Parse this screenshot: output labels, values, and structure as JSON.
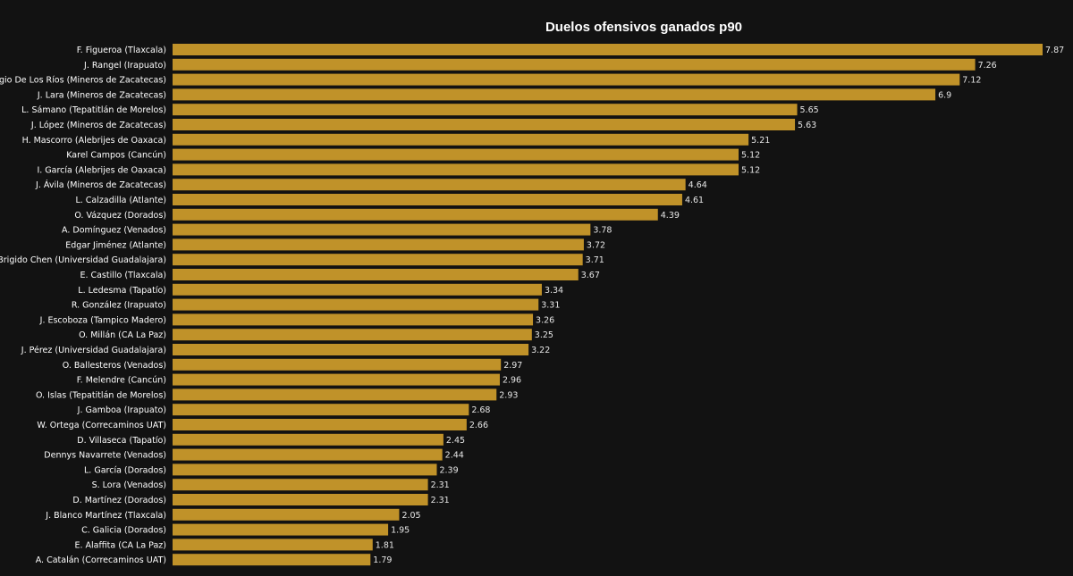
{
  "chart_data": {
    "type": "bar",
    "orientation": "horizontal",
    "title": "Duelos ofensivos ganados p90",
    "bar_color": "#c09229",
    "background": "#121212",
    "categories": [
      "F. Figueroa (Tlaxcala)",
      "J. Rangel (Irapuato)",
      "Sergio De Los Ríos (Mineros de Zacatecas)",
      "J. Lara (Mineros de Zacatecas)",
      "L. Sámano (Tepatitlán de Morelos)",
      "J. López (Mineros de Zacatecas)",
      "H. Mascorro (Alebrijes de Oaxaca)",
      "Karel Campos (Cancún)",
      "I. García (Alebrijes de Oaxaca)",
      "J. Ávila (Mineros de Zacatecas)",
      "L. Calzadilla (Atlante)",
      "O. Vázquez (Dorados)",
      "A. Domínguez (Venados)",
      "Edgar Jiménez (Atlante)",
      "J. Brigido Chen (Universidad Guadalajara)",
      "E. Castillo (Tlaxcala)",
      "L. Ledesma (Tapatío)",
      "R. González (Irapuato)",
      "J. Escoboza (Tampico Madero)",
      "O. Millán (CA La Paz)",
      "J. Pérez (Universidad Guadalajara)",
      "O. Ballesteros (Venados)",
      "F. Melendre (Cancún)",
      "O. Islas (Tepatitlán de Morelos)",
      "J. Gamboa (Irapuato)",
      "W. Ortega (Correcaminos UAT)",
      "D. Villaseca (Tapatío)",
      "Dennys Navarrete (Venados)",
      "L. García (Dorados)",
      "S. Lora (Venados)",
      "D. Martínez (Dorados)",
      "J. Blanco Martínez (Tlaxcala)",
      "C. Galicia (Dorados)",
      "E. Alaffita (CA La Paz)",
      "A. Catalán (Correcaminos UAT)"
    ],
    "values": [
      7.87,
      7.26,
      7.12,
      6.9,
      5.65,
      5.63,
      5.21,
      5.12,
      5.12,
      4.64,
      4.61,
      4.39,
      3.78,
      3.72,
      3.71,
      3.67,
      3.34,
      3.31,
      3.26,
      3.25,
      3.22,
      2.97,
      2.96,
      2.93,
      2.68,
      2.66,
      2.45,
      2.44,
      2.39,
      2.31,
      2.31,
      2.05,
      1.95,
      1.81,
      1.79
    ],
    "value_labels": [
      "7.87",
      "7.26",
      "7.12",
      "6.9",
      "5.65",
      "5.63",
      "5.21",
      "5.12",
      "5.12",
      "4.64",
      "4.61",
      "4.39",
      "3.78",
      "3.72",
      "3.71",
      "3.67",
      "3.34",
      "3.31",
      "3.26",
      "3.25",
      "3.22",
      "2.97",
      "2.96",
      "2.93",
      "2.68",
      "2.66",
      "2.45",
      "2.44",
      "2.39",
      "2.31",
      "2.31",
      "2.05",
      "1.95",
      "1.81",
      "1.79"
    ],
    "xlim": [
      0,
      7.87
    ],
    "grid": false,
    "legend": false
  }
}
